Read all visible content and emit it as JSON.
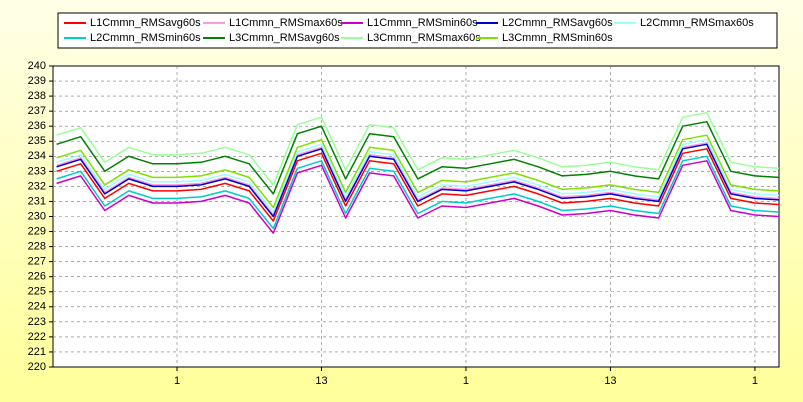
{
  "chart_data": {
    "type": "line",
    "categories": [
      null,
      null,
      null,
      null,
      null,
      "1",
      null,
      null,
      null,
      null,
      null,
      "13",
      null,
      null,
      null,
      null,
      null,
      "1",
      null,
      null,
      null,
      null,
      null,
      "13",
      null,
      null,
      null,
      null,
      null,
      "1",
      null
    ],
    "ylim": [
      220,
      240
    ],
    "yticks": [
      220,
      221,
      222,
      223,
      224,
      225,
      226,
      227,
      228,
      229,
      230,
      231,
      232,
      233,
      234,
      235,
      236,
      237,
      238,
      239,
      240
    ],
    "grid": true,
    "series": [
      {
        "name": "L1Cmmn_RMSavg60s",
        "color": "#ff0000",
        "values": [
          233.0,
          233.5,
          231.2,
          232.2,
          231.7,
          231.7,
          231.8,
          232.2,
          231.7,
          229.7,
          233.7,
          234.2,
          230.7,
          233.7,
          233.5,
          230.7,
          231.5,
          231.4,
          231.7,
          232.0,
          231.5,
          230.9,
          231.0,
          231.2,
          230.9,
          230.7,
          234.2,
          234.5,
          231.2,
          230.9,
          230.8
        ]
      },
      {
        "name": "L1Cmmn_RMSmax60s",
        "color": "#ff99dd",
        "values": [
          233.4,
          233.9,
          231.6,
          232.6,
          232.1,
          232.1,
          232.2,
          232.6,
          232.1,
          230.1,
          234.1,
          234.6,
          231.1,
          234.1,
          233.9,
          231.1,
          231.9,
          231.8,
          232.1,
          232.4,
          231.9,
          231.3,
          231.4,
          231.6,
          231.3,
          231.1,
          234.6,
          234.9,
          231.6,
          231.3,
          231.2
        ]
      },
      {
        "name": "L1Cmmn_RMSmin60s",
        "color": "#cc00cc",
        "values": [
          232.2,
          232.7,
          230.4,
          231.4,
          230.9,
          230.9,
          231.0,
          231.4,
          230.9,
          228.9,
          232.9,
          233.4,
          229.9,
          232.9,
          232.7,
          229.9,
          230.7,
          230.6,
          230.9,
          231.2,
          230.7,
          230.1,
          230.2,
          230.4,
          230.1,
          229.9,
          233.4,
          233.7,
          230.4,
          230.1,
          230.0
        ]
      },
      {
        "name": "L2Cmmn_RMSavg60s",
        "color": "#0000cc",
        "values": [
          233.3,
          233.8,
          231.5,
          232.5,
          232.0,
          232.0,
          232.1,
          232.5,
          232.0,
          230.0,
          234.0,
          234.5,
          231.0,
          234.0,
          233.8,
          231.0,
          231.8,
          231.7,
          232.0,
          232.3,
          231.8,
          231.2,
          231.3,
          231.5,
          231.2,
          231.0,
          234.5,
          234.8,
          231.5,
          231.2,
          231.1
        ]
      },
      {
        "name": "L2Cmmn_RMSmax60s",
        "color": "#99ffff",
        "values": [
          233.6,
          234.1,
          231.8,
          232.8,
          232.3,
          232.3,
          232.4,
          232.8,
          232.3,
          230.3,
          234.3,
          234.8,
          231.3,
          234.3,
          234.1,
          231.3,
          232.1,
          232.0,
          232.3,
          232.6,
          232.1,
          231.5,
          231.6,
          231.8,
          231.5,
          231.3,
          234.8,
          235.1,
          231.8,
          231.5,
          231.4
        ]
      },
      {
        "name": "L2Cmmn_RMSmin60s",
        "color": "#00cccc",
        "values": [
          232.5,
          233.0,
          230.7,
          231.7,
          231.2,
          231.2,
          231.3,
          231.7,
          231.2,
          229.2,
          233.2,
          233.7,
          230.2,
          233.2,
          233.0,
          230.2,
          231.0,
          230.9,
          231.2,
          231.5,
          231.0,
          230.4,
          230.5,
          230.7,
          230.4,
          230.2,
          233.7,
          234.0,
          230.7,
          230.4,
          230.3
        ]
      },
      {
        "name": "L3Cmmn_RMSavg60s",
        "color": "#008000",
        "values": [
          234.8,
          235.3,
          233.0,
          234.0,
          233.5,
          233.5,
          233.6,
          234.0,
          233.5,
          231.5,
          235.5,
          236.0,
          232.5,
          235.5,
          235.3,
          232.5,
          233.3,
          233.2,
          233.5,
          233.8,
          233.3,
          232.7,
          232.8,
          233.0,
          232.7,
          232.5,
          236.0,
          236.3,
          233.0,
          232.7,
          232.6
        ]
      },
      {
        "name": "L3Cmmn_RMSmax60s",
        "color": "#99ff99",
        "values": [
          235.4,
          235.9,
          233.6,
          234.6,
          234.1,
          234.1,
          234.2,
          234.6,
          234.1,
          232.1,
          236.1,
          236.6,
          233.1,
          236.1,
          235.9,
          233.1,
          233.9,
          233.8,
          234.1,
          234.4,
          233.9,
          233.3,
          233.4,
          233.6,
          233.3,
          233.1,
          236.6,
          236.9,
          233.6,
          233.3,
          233.2
        ]
      },
      {
        "name": "L3Cmmn_RMSmin60s",
        "color": "#80e000",
        "values": [
          233.9,
          234.4,
          232.1,
          233.1,
          232.6,
          232.6,
          232.7,
          233.1,
          232.6,
          230.6,
          234.6,
          235.1,
          231.6,
          234.6,
          234.4,
          231.6,
          232.4,
          232.3,
          232.6,
          232.9,
          232.4,
          231.8,
          231.9,
          232.1,
          231.8,
          231.6,
          235.1,
          235.4,
          232.1,
          231.8,
          231.7
        ]
      }
    ]
  }
}
